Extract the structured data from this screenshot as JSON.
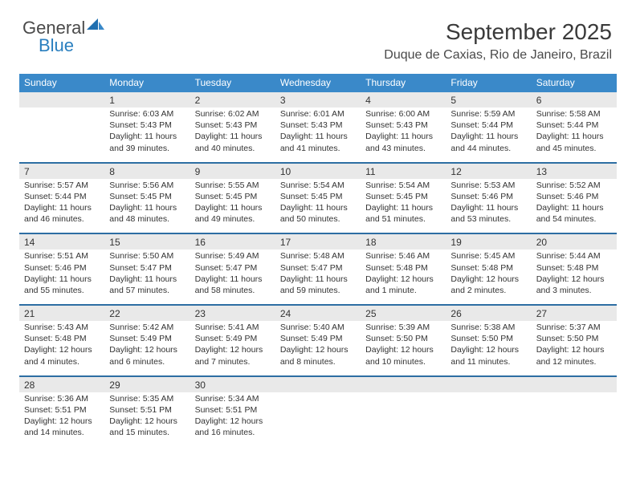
{
  "logo": {
    "text1": "General",
    "text2": "Blue"
  },
  "title": "September 2025",
  "location": "Duque de Caxias, Rio de Janeiro, Brazil",
  "colors": {
    "header_bg": "#3a89c9",
    "daynum_bg": "#e9e9e9",
    "row_divider": "#2d6ea3",
    "text": "#333333"
  },
  "dayHeaders": [
    "Sunday",
    "Monday",
    "Tuesday",
    "Wednesday",
    "Thursday",
    "Friday",
    "Saturday"
  ],
  "weeks": [
    {
      "nums": [
        "",
        "1",
        "2",
        "3",
        "4",
        "5",
        "6"
      ],
      "cells": [
        {
          "sunrise": "",
          "sunset": "",
          "daylight": ""
        },
        {
          "sunrise": "Sunrise: 6:03 AM",
          "sunset": "Sunset: 5:43 PM",
          "daylight": "Daylight: 11 hours and 39 minutes."
        },
        {
          "sunrise": "Sunrise: 6:02 AM",
          "sunset": "Sunset: 5:43 PM",
          "daylight": "Daylight: 11 hours and 40 minutes."
        },
        {
          "sunrise": "Sunrise: 6:01 AM",
          "sunset": "Sunset: 5:43 PM",
          "daylight": "Daylight: 11 hours and 41 minutes."
        },
        {
          "sunrise": "Sunrise: 6:00 AM",
          "sunset": "Sunset: 5:43 PM",
          "daylight": "Daylight: 11 hours and 43 minutes."
        },
        {
          "sunrise": "Sunrise: 5:59 AM",
          "sunset": "Sunset: 5:44 PM",
          "daylight": "Daylight: 11 hours and 44 minutes."
        },
        {
          "sunrise": "Sunrise: 5:58 AM",
          "sunset": "Sunset: 5:44 PM",
          "daylight": "Daylight: 11 hours and 45 minutes."
        }
      ]
    },
    {
      "nums": [
        "7",
        "8",
        "9",
        "10",
        "11",
        "12",
        "13"
      ],
      "cells": [
        {
          "sunrise": "Sunrise: 5:57 AM",
          "sunset": "Sunset: 5:44 PM",
          "daylight": "Daylight: 11 hours and 46 minutes."
        },
        {
          "sunrise": "Sunrise: 5:56 AM",
          "sunset": "Sunset: 5:45 PM",
          "daylight": "Daylight: 11 hours and 48 minutes."
        },
        {
          "sunrise": "Sunrise: 5:55 AM",
          "sunset": "Sunset: 5:45 PM",
          "daylight": "Daylight: 11 hours and 49 minutes."
        },
        {
          "sunrise": "Sunrise: 5:54 AM",
          "sunset": "Sunset: 5:45 PM",
          "daylight": "Daylight: 11 hours and 50 minutes."
        },
        {
          "sunrise": "Sunrise: 5:54 AM",
          "sunset": "Sunset: 5:45 PM",
          "daylight": "Daylight: 11 hours and 51 minutes."
        },
        {
          "sunrise": "Sunrise: 5:53 AM",
          "sunset": "Sunset: 5:46 PM",
          "daylight": "Daylight: 11 hours and 53 minutes."
        },
        {
          "sunrise": "Sunrise: 5:52 AM",
          "sunset": "Sunset: 5:46 PM",
          "daylight": "Daylight: 11 hours and 54 minutes."
        }
      ]
    },
    {
      "nums": [
        "14",
        "15",
        "16",
        "17",
        "18",
        "19",
        "20"
      ],
      "cells": [
        {
          "sunrise": "Sunrise: 5:51 AM",
          "sunset": "Sunset: 5:46 PM",
          "daylight": "Daylight: 11 hours and 55 minutes."
        },
        {
          "sunrise": "Sunrise: 5:50 AM",
          "sunset": "Sunset: 5:47 PM",
          "daylight": "Daylight: 11 hours and 57 minutes."
        },
        {
          "sunrise": "Sunrise: 5:49 AM",
          "sunset": "Sunset: 5:47 PM",
          "daylight": "Daylight: 11 hours and 58 minutes."
        },
        {
          "sunrise": "Sunrise: 5:48 AM",
          "sunset": "Sunset: 5:47 PM",
          "daylight": "Daylight: 11 hours and 59 minutes."
        },
        {
          "sunrise": "Sunrise: 5:46 AM",
          "sunset": "Sunset: 5:48 PM",
          "daylight": "Daylight: 12 hours and 1 minute."
        },
        {
          "sunrise": "Sunrise: 5:45 AM",
          "sunset": "Sunset: 5:48 PM",
          "daylight": "Daylight: 12 hours and 2 minutes."
        },
        {
          "sunrise": "Sunrise: 5:44 AM",
          "sunset": "Sunset: 5:48 PM",
          "daylight": "Daylight: 12 hours and 3 minutes."
        }
      ]
    },
    {
      "nums": [
        "21",
        "22",
        "23",
        "24",
        "25",
        "26",
        "27"
      ],
      "cells": [
        {
          "sunrise": "Sunrise: 5:43 AM",
          "sunset": "Sunset: 5:48 PM",
          "daylight": "Daylight: 12 hours and 4 minutes."
        },
        {
          "sunrise": "Sunrise: 5:42 AM",
          "sunset": "Sunset: 5:49 PM",
          "daylight": "Daylight: 12 hours and 6 minutes."
        },
        {
          "sunrise": "Sunrise: 5:41 AM",
          "sunset": "Sunset: 5:49 PM",
          "daylight": "Daylight: 12 hours and 7 minutes."
        },
        {
          "sunrise": "Sunrise: 5:40 AM",
          "sunset": "Sunset: 5:49 PM",
          "daylight": "Daylight: 12 hours and 8 minutes."
        },
        {
          "sunrise": "Sunrise: 5:39 AM",
          "sunset": "Sunset: 5:50 PM",
          "daylight": "Daylight: 12 hours and 10 minutes."
        },
        {
          "sunrise": "Sunrise: 5:38 AM",
          "sunset": "Sunset: 5:50 PM",
          "daylight": "Daylight: 12 hours and 11 minutes."
        },
        {
          "sunrise": "Sunrise: 5:37 AM",
          "sunset": "Sunset: 5:50 PM",
          "daylight": "Daylight: 12 hours and 12 minutes."
        }
      ]
    },
    {
      "nums": [
        "28",
        "29",
        "30",
        "",
        "",
        "",
        ""
      ],
      "cells": [
        {
          "sunrise": "Sunrise: 5:36 AM",
          "sunset": "Sunset: 5:51 PM",
          "daylight": "Daylight: 12 hours and 14 minutes."
        },
        {
          "sunrise": "Sunrise: 5:35 AM",
          "sunset": "Sunset: 5:51 PM",
          "daylight": "Daylight: 12 hours and 15 minutes."
        },
        {
          "sunrise": "Sunrise: 5:34 AM",
          "sunset": "Sunset: 5:51 PM",
          "daylight": "Daylight: 12 hours and 16 minutes."
        },
        {
          "sunrise": "",
          "sunset": "",
          "daylight": ""
        },
        {
          "sunrise": "",
          "sunset": "",
          "daylight": ""
        },
        {
          "sunrise": "",
          "sunset": "",
          "daylight": ""
        },
        {
          "sunrise": "",
          "sunset": "",
          "daylight": ""
        }
      ]
    }
  ]
}
